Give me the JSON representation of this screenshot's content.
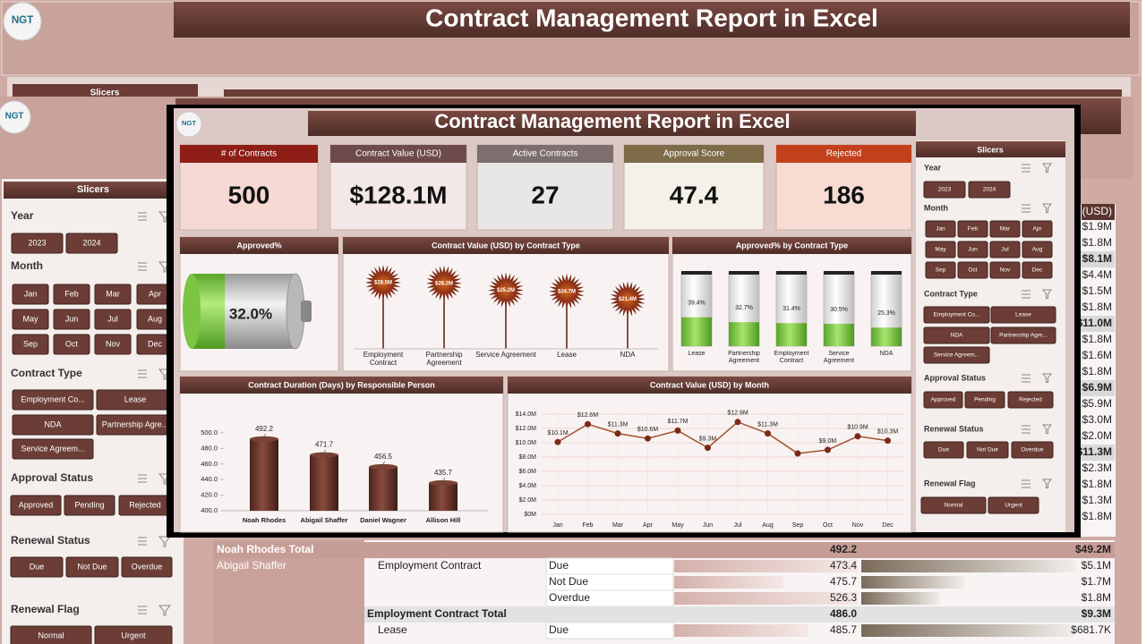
{
  "logo": "NGT",
  "back_sheet": {
    "title": "Contract Management Report in Excel",
    "value_header": "(USD)",
    "value_column": [
      {
        "text": "$1.9M"
      },
      {
        "text": "$1.8M"
      },
      {
        "text": "$8.1M",
        "bold": true
      },
      {
        "text": "$4.4M"
      },
      {
        "text": "$1.5M"
      },
      {
        "text": "$1.8M"
      },
      {
        "text": "$11.0M",
        "bold": true
      },
      {
        "text": "$1.8M"
      },
      {
        "text": "$1.6M"
      },
      {
        "text": "$1.8M"
      },
      {
        "text": "$6.9M",
        "bold": true
      },
      {
        "text": "$5.9M"
      },
      {
        "text": "$3.0M"
      },
      {
        "text": "$2.0M"
      },
      {
        "text": "$11.3M",
        "bold": true
      },
      {
        "text": "$2.3M"
      },
      {
        "text": "$1.8M"
      },
      {
        "text": "$1.3M"
      },
      {
        "text": "$1.8M"
      }
    ],
    "pivot_rows": [
      {
        "person": "Noah Rhodes Total",
        "duration": "492.2",
        "value": "$49.2M",
        "total": true
      },
      {
        "person": "Abigail Shaffer",
        "type": "Employment Contract",
        "status": "Due",
        "duration": "473.4",
        "value": "$5.1M"
      },
      {
        "status": "Not Due",
        "duration": "475.7",
        "value": "$1.7M"
      },
      {
        "status": "Overdue",
        "duration": "526.3",
        "value": "$1.8M"
      },
      {
        "type": "Employment Contract Total",
        "duration": "486.0",
        "value": "$9.3M",
        "total": true
      },
      {
        "type": "Lease",
        "status": "Due",
        "duration": "485.7",
        "value": "$681.7K"
      }
    ]
  },
  "slicers": {
    "title": "Slicers",
    "groups": [
      {
        "name": "Year",
        "items": [
          "2023",
          "2024"
        ]
      },
      {
        "name": "Month",
        "items": [
          "Jan",
          "Feb",
          "Mar",
          "Apr",
          "May",
          "Jun",
          "Jul",
          "Aug",
          "Sep",
          "Oct",
          "Nov",
          "Dec"
        ]
      },
      {
        "name": "Contract Type",
        "items": [
          "Employment Co...",
          "Lease",
          "NDA",
          "Partnership Agre...",
          "Service Agreem..."
        ]
      },
      {
        "name": "Approval Status",
        "items": [
          "Approved",
          "Pending",
          "Rejected"
        ]
      },
      {
        "name": "Renewal Status",
        "items": [
          "Due",
          "Not Due",
          "Overdue"
        ]
      },
      {
        "name": "Renewal Flag",
        "items": [
          "Normal",
          "Urgent"
        ]
      }
    ]
  },
  "dashboard": {
    "title": "Contract Management Report in Excel",
    "kpis": [
      {
        "label": "# of Contracts",
        "value": 500,
        "color": "#8e1d16",
        "background": "#f6d9d3"
      },
      {
        "label": "Contract Value (USD)",
        "value": "$128.1M",
        "color": "#6e4b4b",
        "background": "#f3e8e7"
      },
      {
        "label": "Active Contracts",
        "value": 27,
        "color": "#7d6f6f",
        "background": "#e9e6e6"
      },
      {
        "label": "Approval Score",
        "value": 47.4,
        "color": "#7d6c47",
        "background": "#f4f1e9"
      },
      {
        "label": "Rejected",
        "value": 186,
        "color": "#c2401b",
        "background": "#f8dcd3"
      }
    ]
  },
  "chart_data": [
    {
      "type": "gauge",
      "title": "Approved%",
      "value": 32.0,
      "value_label": "32.0%",
      "color": "#7cc443"
    },
    {
      "type": "lollipop",
      "title": "Contract Value (USD) by Contract Type",
      "categories": [
        "Employment Contract",
        "Partnership Agreement",
        "Service Agreement",
        "Lease",
        "NDA"
      ],
      "values": [
        28.5,
        28.2,
        25.2,
        24.7,
        21.4
      ],
      "value_labels": [
        "$28.5M",
        "$28.2M",
        "$25.2M",
        "$24.7M",
        "$21.4M"
      ],
      "color": "#8b2e16"
    },
    {
      "type": "cylinder",
      "title": "Approved% by Contract Type",
      "categories": [
        "Lease",
        "Partnership Agreement",
        "Employment Contract",
        "Service Agreement",
        "NDA"
      ],
      "values": [
        39.4,
        32.7,
        31.4,
        30.5,
        25.3
      ],
      "value_labels": [
        "39.4%",
        "32.7%",
        "31.4%",
        "30.5%",
        "25.3%"
      ],
      "ylim": [
        0,
        100
      ],
      "color": "#72c93a"
    },
    {
      "type": "bar",
      "title": "Contract Duration (Days) by Responsible Person",
      "categories": [
        "Noah Rhodes",
        "Abigail Shaffer",
        "Daniel Wagner",
        "Allison Hill"
      ],
      "values": [
        492.2,
        471.7,
        456.5,
        435.7
      ],
      "ylim": [
        400,
        500
      ],
      "yticks": [
        {
          "value": 400,
          "label": "400.0"
        },
        {
          "value": 420,
          "label": "420.0"
        },
        {
          "value": 440,
          "label": "440.0"
        },
        {
          "value": 460,
          "label": "460.0"
        },
        {
          "value": 480,
          "label": "480.0"
        },
        {
          "value": 500,
          "label": "500.0"
        }
      ],
      "color": "#6b3a30"
    },
    {
      "type": "line",
      "title": "Contract Value (USD) by Month",
      "categories": [
        "Jan",
        "Feb",
        "Mar",
        "Apr",
        "May",
        "Jun",
        "Jul",
        "Aug",
        "Sep",
        "Oct",
        "Nov",
        "Dec"
      ],
      "values": [
        10.1,
        12.6,
        11.3,
        10.6,
        11.7,
        9.3,
        12.9,
        11.3,
        8.5,
        9.0,
        10.9,
        10.3
      ],
      "value_labels": [
        "$10.1M",
        "$12.6M",
        "$11.3M",
        "$10.6M",
        "$11.7M",
        "$9.3M",
        "$12.9M",
        "$11.3M",
        null,
        "$9.0M",
        "$10.9M",
        "$10.3M"
      ],
      "ylim": [
        0,
        14
      ],
      "yticks": [
        {
          "value": 0,
          "label": "$0M"
        },
        {
          "value": 2,
          "label": "$2.0M"
        },
        {
          "value": 4,
          "label": "$4.0M"
        },
        {
          "value": 6,
          "label": "$6.0M"
        },
        {
          "value": 8,
          "label": "$8.0M"
        },
        {
          "value": 10,
          "label": "$10.0M"
        },
        {
          "value": 12,
          "label": "$12.0M"
        },
        {
          "value": 14,
          "label": "$14.0M"
        }
      ],
      "color": "#a0522d",
      "grid": true
    }
  ]
}
